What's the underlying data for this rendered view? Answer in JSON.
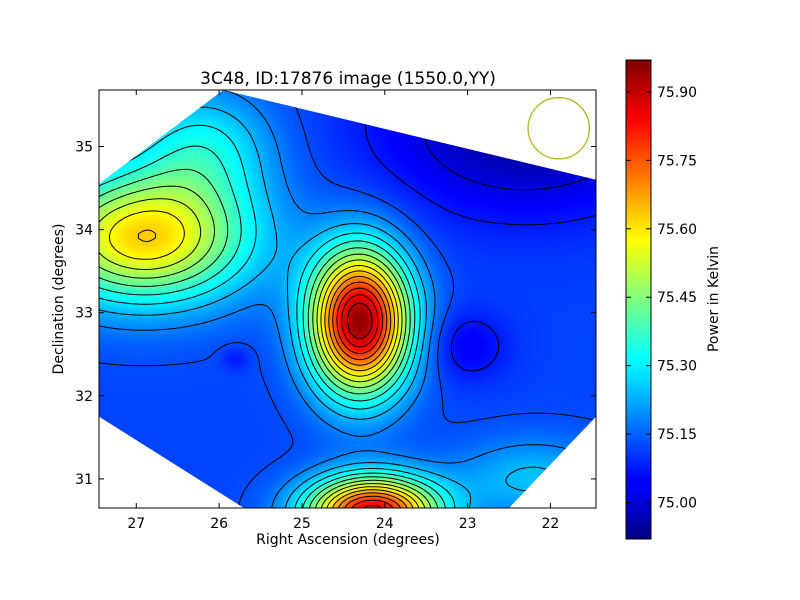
{
  "chart_data": {
    "type": "heatmap",
    "title": "3C48, ID:17876 image (1550.0,YY)",
    "xlabel": "Right Ascension (degrees)",
    "ylabel": "Declination (degrees)",
    "colorbar_label": "Power in Kelvin",
    "xlim": [
      27.45,
      21.45
    ],
    "ylim": [
      30.65,
      35.68
    ],
    "x_ticks": [
      27,
      26,
      25,
      24,
      23,
      22
    ],
    "x_tick_labels": [
      "27",
      "26",
      "25",
      "24",
      "23",
      "22"
    ],
    "y_ticks": [
      31,
      32,
      33,
      34,
      35
    ],
    "y_tick_labels": [
      "31",
      "32",
      "33",
      "34",
      "35"
    ],
    "colorbar_range": [
      74.92,
      75.97
    ],
    "colorbar_ticks": [
      75.0,
      75.15,
      75.3,
      75.45,
      75.6,
      75.75,
      75.9
    ],
    "colorbar_tick_labels": [
      "75.00",
      "75.15",
      "75.30",
      "75.45",
      "75.60",
      "75.75",
      "75.90"
    ],
    "colormap": "jet",
    "contour_color": "#000000",
    "beam_color": "#b5b520",
    "beam": {
      "ra": 21.9,
      "dec": 35.22,
      "radius_deg": 0.37
    },
    "field_vertices": [
      [
        25.95,
        35.68
      ],
      [
        21.45,
        34.6
      ],
      [
        21.45,
        31.75
      ],
      [
        22.5,
        30.65
      ],
      [
        25.7,
        30.65
      ],
      [
        27.45,
        31.75
      ],
      [
        27.45,
        34.55
      ]
    ],
    "grid": false,
    "base_level": 75.12,
    "components": [
      {
        "ra": 24.3,
        "dec": 32.9,
        "amplitude": 0.83,
        "sigma_ra": 0.42,
        "sigma_dec": 0.6
      },
      {
        "ra": 24.15,
        "dec": 30.6,
        "amplitude": 0.75,
        "sigma_ra": 0.55,
        "sigma_dec": 0.3
      },
      {
        "ra": 26.9,
        "dec": 33.9,
        "amplitude": 0.5,
        "sigma_ra": 0.9,
        "sigma_dec": 0.55
      },
      {
        "ra": 26.2,
        "dec": 35.0,
        "amplitude": 0.18,
        "sigma_ra": 0.6,
        "sigma_dec": 0.5
      },
      {
        "ra": 22.2,
        "dec": 31.0,
        "amplitude": 0.13,
        "sigma_ra": 0.7,
        "sigma_dec": 0.35
      },
      {
        "ra": 22.3,
        "dec": 35.2,
        "amplitude": -0.17,
        "sigma_ra": 1.2,
        "sigma_dec": 0.7
      },
      {
        "ra": 23.0,
        "dec": 32.6,
        "amplitude": -0.08,
        "sigma_ra": 0.35,
        "sigma_dec": 0.3
      },
      {
        "ra": 25.8,
        "dec": 32.45,
        "amplitude": -0.05,
        "sigma_ra": 0.12,
        "sigma_dec": 0.1
      }
    ]
  }
}
